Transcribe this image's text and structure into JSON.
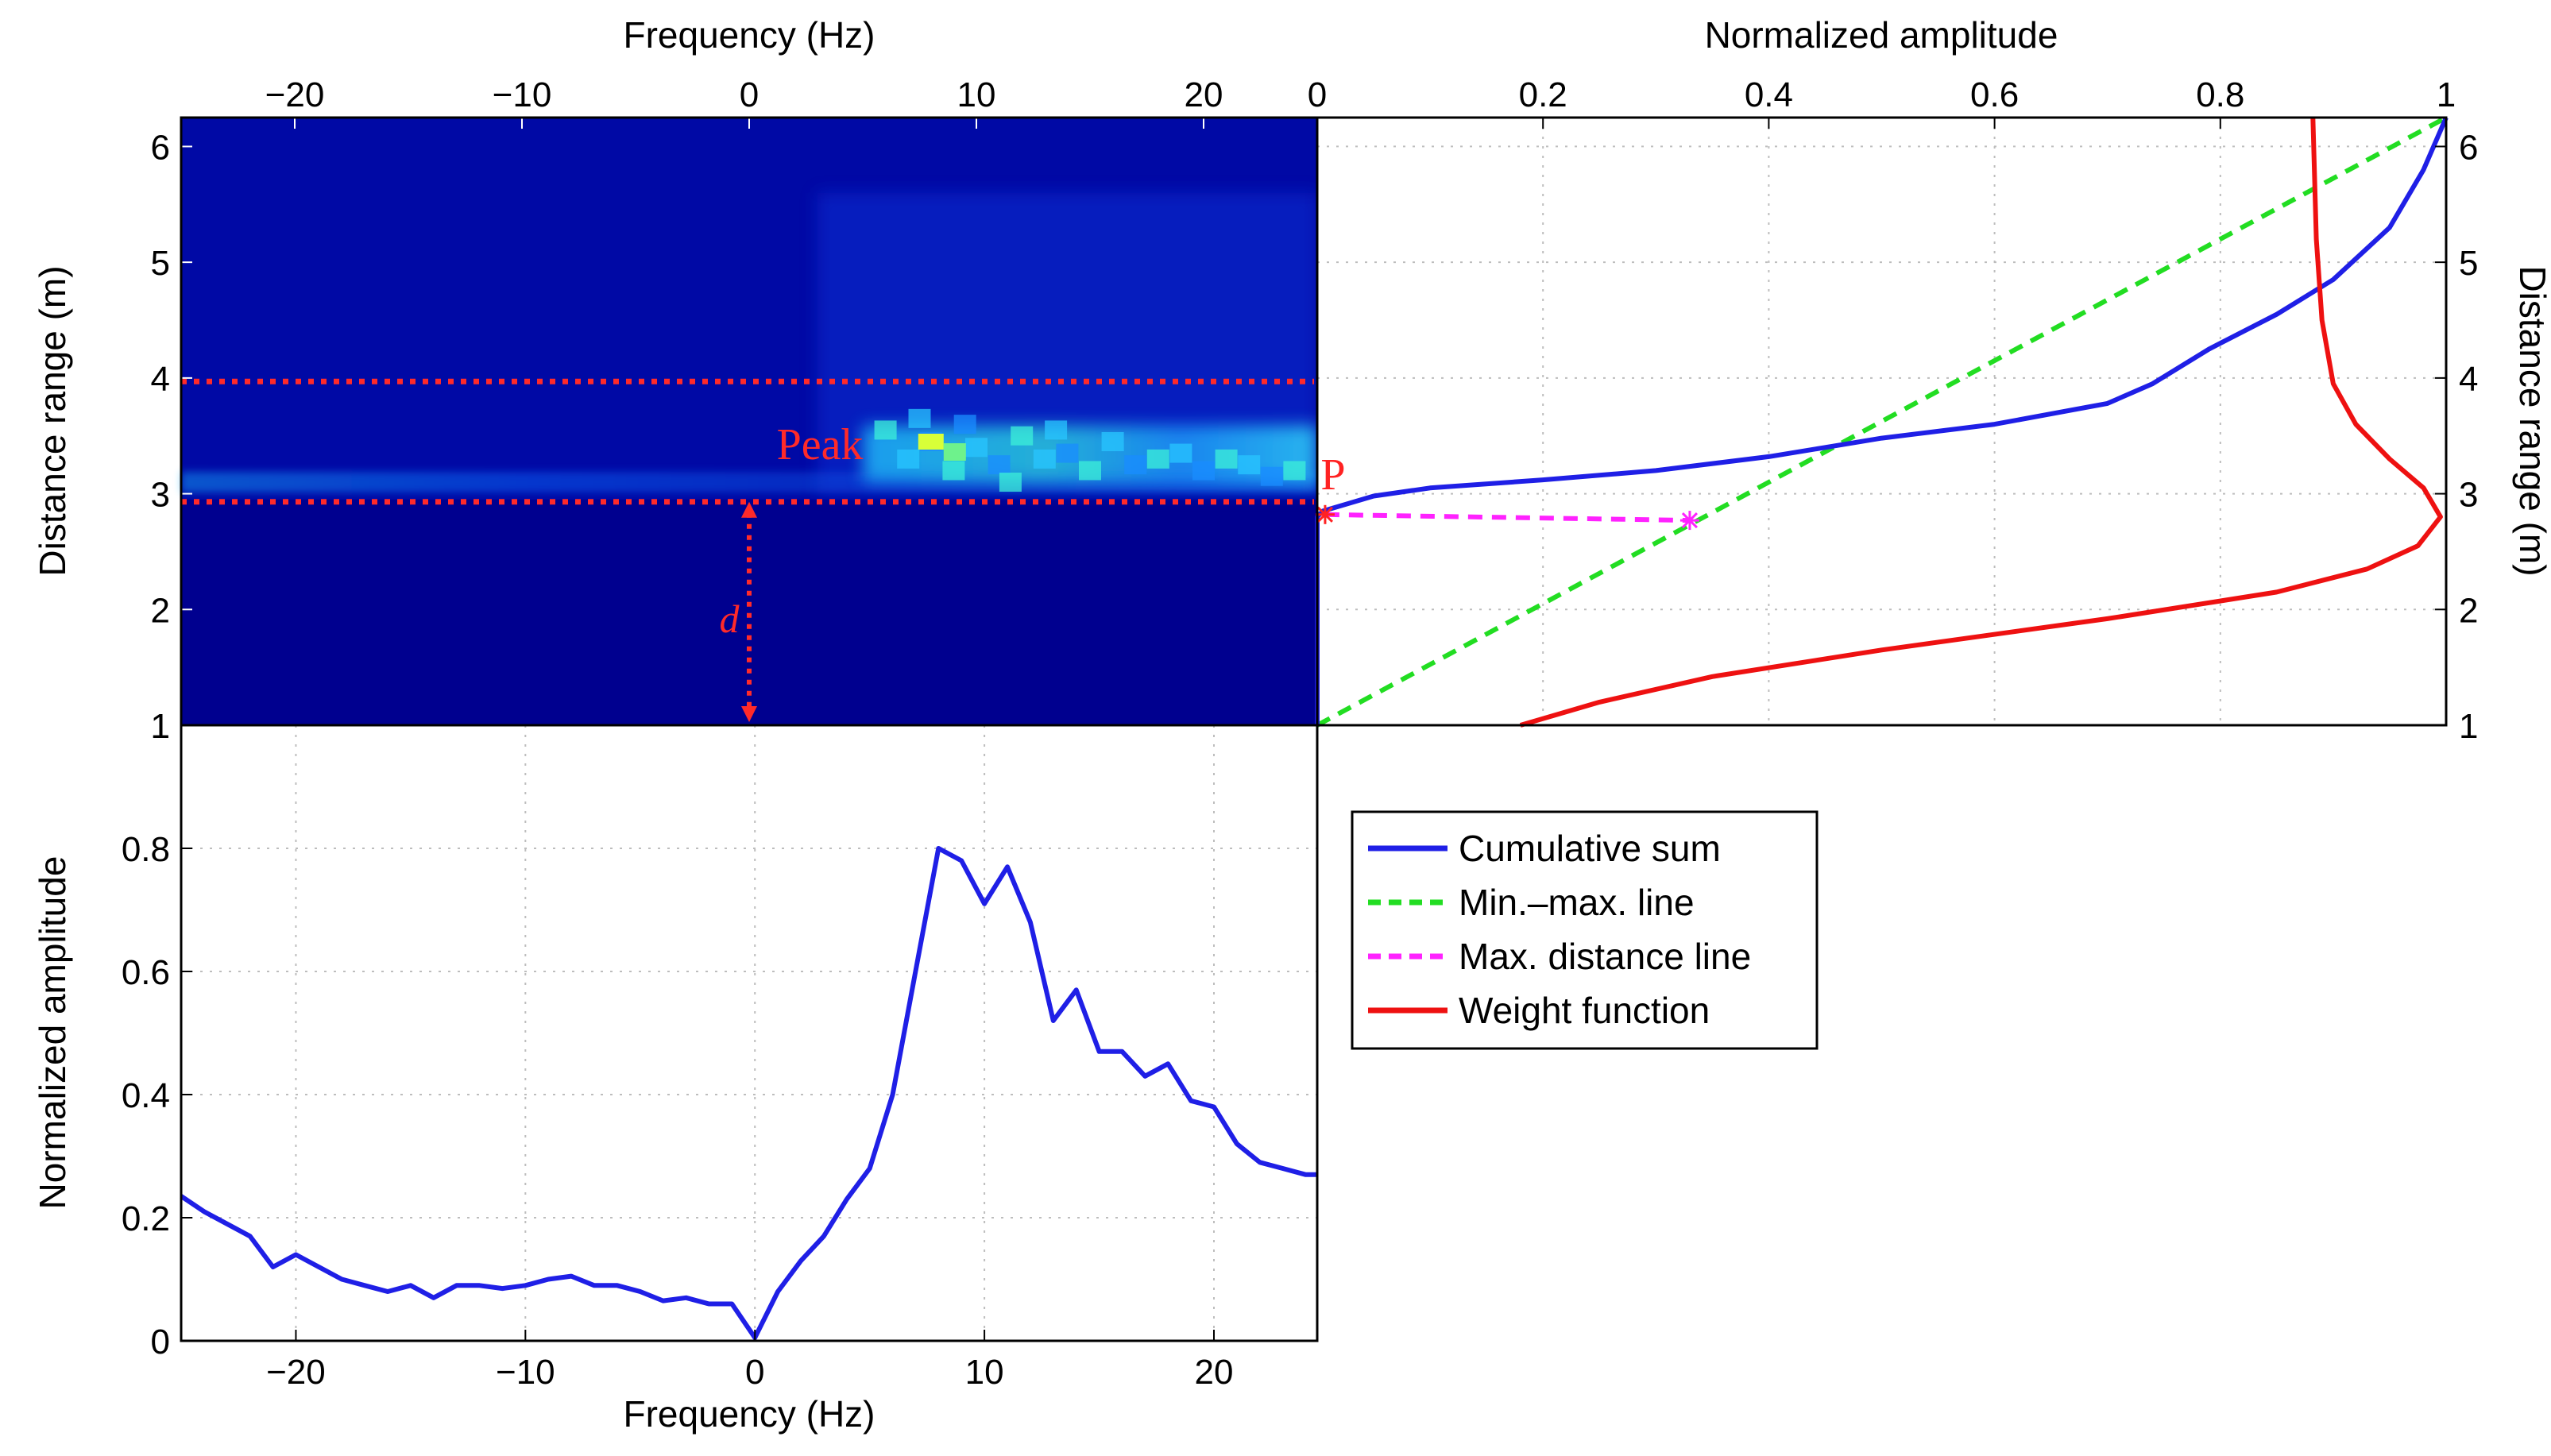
{
  "chart_data": [
    {
      "id": "spectrogram",
      "type": "heatmap",
      "xlabel": "Frequency (Hz)",
      "ylabel": "Distance range (m)",
      "xlim": [
        -25,
        25
      ],
      "ylim": [
        1,
        6.25
      ],
      "xticks": [
        -20,
        -10,
        0,
        10,
        20
      ],
      "yticks": [
        1,
        2,
        3,
        4,
        5,
        6
      ],
      "colormap": "jet",
      "bands": [
        {
          "y": 3.1,
          "x_start": -25,
          "x_end": 25,
          "intensity": 0.45
        },
        {
          "y": 3.35,
          "x_start": 5,
          "x_end": 25,
          "intensity": 0.75
        }
      ],
      "peak": {
        "x": 8,
        "y": 3.45
      },
      "dotted_lines_y": [
        2.93,
        3.97
      ],
      "annotations": {
        "peak_label": "Peak",
        "d_label": "d"
      },
      "dotted_line_color": "#ff2a2a"
    },
    {
      "id": "cumulative-panel",
      "type": "line",
      "xlabel": "Normalized amplitude",
      "ylabel": "Distance range (m)",
      "xlim": [
        0,
        1
      ],
      "ylim": [
        1,
        6.25
      ],
      "xticks": [
        0,
        0.2,
        0.4,
        0.6,
        0.8,
        1
      ],
      "yticks": [
        1,
        2,
        3,
        4,
        5,
        6
      ],
      "grid": true,
      "series": [
        {
          "name": "Cumulative sum",
          "color": "#1f1fe6",
          "style": "solid",
          "points": [
            [
              0,
              1
            ],
            [
              0,
              2.8
            ],
            [
              0.005,
              2.85
            ],
            [
              0.05,
              2.98
            ],
            [
              0.1,
              3.05
            ],
            [
              0.2,
              3.12
            ],
            [
              0.3,
              3.2
            ],
            [
              0.4,
              3.32
            ],
            [
              0.45,
              3.4
            ],
            [
              0.5,
              3.48
            ],
            [
              0.6,
              3.6
            ],
            [
              0.7,
              3.78
            ],
            [
              0.74,
              3.95
            ],
            [
              0.79,
              4.25
            ],
            [
              0.85,
              4.55
            ],
            [
              0.9,
              4.85
            ],
            [
              0.95,
              5.3
            ],
            [
              0.98,
              5.8
            ],
            [
              1,
              6.25
            ]
          ]
        },
        {
          "name": "Min.–max. line",
          "color": "#22dd22",
          "style": "dashed",
          "points": [
            [
              0,
              1
            ],
            [
              1,
              6.25
            ]
          ]
        },
        {
          "name": "Max. distance line",
          "color": "#ff22ff",
          "style": "dashed",
          "points": [
            [
              0.007,
              2.82
            ],
            [
              0.33,
              2.77
            ]
          ]
        },
        {
          "name": "Weight function",
          "color": "#ee1111",
          "style": "solid",
          "points": [
            [
              0.18,
              1
            ],
            [
              0.25,
              1.2
            ],
            [
              0.35,
              1.42
            ],
            [
              0.5,
              1.65
            ],
            [
              0.7,
              1.92
            ],
            [
              0.85,
              2.15
            ],
            [
              0.93,
              2.35
            ],
            [
              0.975,
              2.55
            ],
            [
              0.995,
              2.8
            ],
            [
              0.98,
              3.05
            ],
            [
              0.95,
              3.3
            ],
            [
              0.92,
              3.6
            ],
            [
              0.9,
              3.95
            ],
            [
              0.89,
              4.5
            ],
            [
              0.885,
              5.2
            ],
            [
              0.882,
              6.25
            ]
          ]
        }
      ],
      "markers": [
        {
          "x": 0.007,
          "y": 2.82,
          "color": "#ff2222",
          "label": "P"
        },
        {
          "x": 0.33,
          "y": 2.77,
          "color": "#ff22ff"
        }
      ]
    },
    {
      "id": "spectrum",
      "type": "line",
      "xlabel": "Frequency (Hz)",
      "ylabel": "Normalized amplitude",
      "xlim": [
        -25,
        24.5
      ],
      "ylim": [
        0,
        1
      ],
      "xticks": [
        -20,
        -10,
        0,
        10,
        20
      ],
      "yticks": [
        0,
        0.2,
        0.4,
        0.6,
        0.8,
        1
      ],
      "grid": true,
      "series": [
        {
          "name": "spectrum",
          "color": "#1f1fe6",
          "x": [
            -25,
            -24,
            -23,
            -22,
            -21,
            -20,
            -19,
            -18,
            -17,
            -16,
            -15,
            -14,
            -13,
            -12,
            -11,
            -10,
            -9,
            -8,
            -7,
            -6,
            -5,
            -4,
            -3,
            -2,
            -1,
            0,
            1,
            2,
            3,
            4,
            5,
            6,
            7,
            8,
            9,
            10,
            11,
            12,
            13,
            14,
            15,
            16,
            17,
            18,
            19,
            20,
            21,
            22,
            23,
            24,
            24.5
          ],
          "y": [
            0.235,
            0.21,
            0.19,
            0.17,
            0.12,
            0.14,
            0.12,
            0.1,
            0.09,
            0.08,
            0.09,
            0.07,
            0.09,
            0.09,
            0.085,
            0.09,
            0.1,
            0.105,
            0.09,
            0.09,
            0.08,
            0.065,
            0.07,
            0.06,
            0.06,
            0.005,
            0.08,
            0.13,
            0.17,
            0.23,
            0.28,
            0.4,
            0.6,
            0.8,
            0.78,
            0.71,
            0.77,
            0.68,
            0.52,
            0.57,
            0.47,
            0.47,
            0.43,
            0.45,
            0.39,
            0.38,
            0.32,
            0.29,
            0.28,
            0.27,
            0.27
          ]
        }
      ]
    }
  ],
  "legend": {
    "items": [
      {
        "label": "Cumulative sum",
        "color": "#1f1fe6",
        "style": "solid"
      },
      {
        "label": "Min.–max. line",
        "color": "#22dd22",
        "style": "dashed"
      },
      {
        "label": "Max. distance line",
        "color": "#ff22ff",
        "style": "dashed"
      },
      {
        "label": "Weight function",
        "color": "#ee1111",
        "style": "solid"
      }
    ]
  },
  "colors": {
    "heatmap_bg": "#00008f",
    "grid": "#bdbdbd"
  }
}
